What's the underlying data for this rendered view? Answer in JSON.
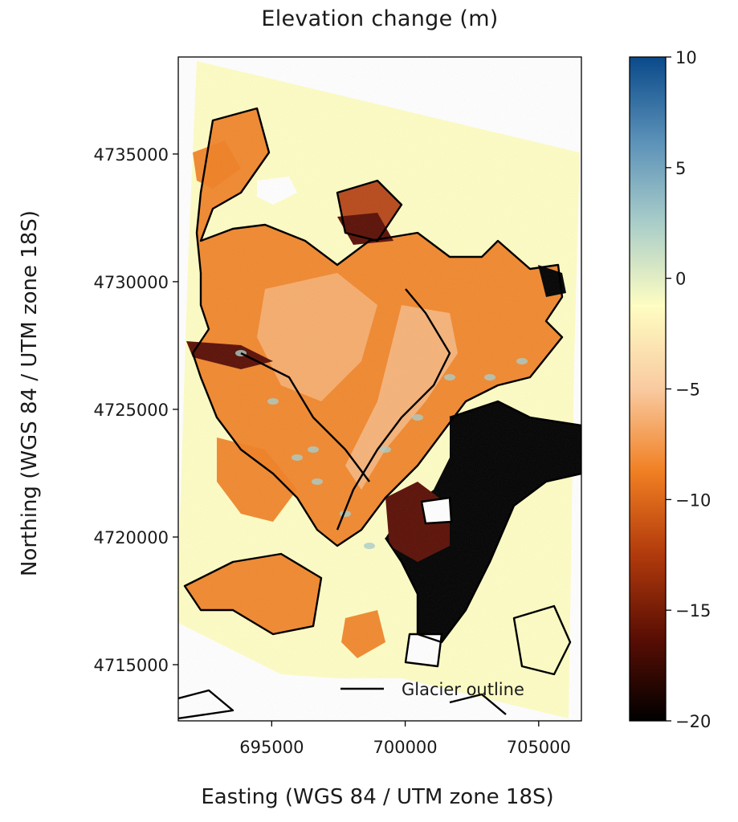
{
  "title": "Elevation change (m)",
  "chart_data": {
    "type": "heatmap",
    "title": "Elevation change (m)",
    "xlabel": "Easting (WGS 84 / UTM zone 18S)",
    "ylabel": "Northing (WGS 84 / UTM zone 18S)",
    "xlim": [
      691500,
      706600
    ],
    "ylim": [
      4712800,
      4738800
    ],
    "x_ticks": [
      695000,
      700000,
      705000
    ],
    "x_tick_labels": [
      "695000",
      "700000",
      "705000"
    ],
    "y_ticks": [
      4715000,
      4720000,
      4725000,
      4730000,
      4735000
    ],
    "y_tick_labels": [
      "4715000",
      "4720000",
      "4725000",
      "4730000",
      "4735000"
    ],
    "grid": false,
    "colorbar": {
      "label": "Elevation change (m)",
      "range": [
        -20,
        10
      ],
      "ticks": [
        10,
        5,
        0,
        -5,
        -10,
        -15,
        -20
      ],
      "tick_labels": [
        "10",
        "5",
        "0",
        "−5",
        "−10",
        "−15",
        "−20"
      ],
      "colormap": [
        "#000000",
        "#5a0e04",
        "#b13a0c",
        "#f07f22",
        "#f9caa0",
        "#fefdc2",
        "#a9cdc9",
        "#5a90b8",
        "#0a4a8a"
      ]
    },
    "legend": {
      "position": "bottom-right",
      "entries": [
        "Glacier outline"
      ],
      "color": "#000000"
    },
    "background_color": "#fefdc4",
    "outline_color": "#000000"
  }
}
